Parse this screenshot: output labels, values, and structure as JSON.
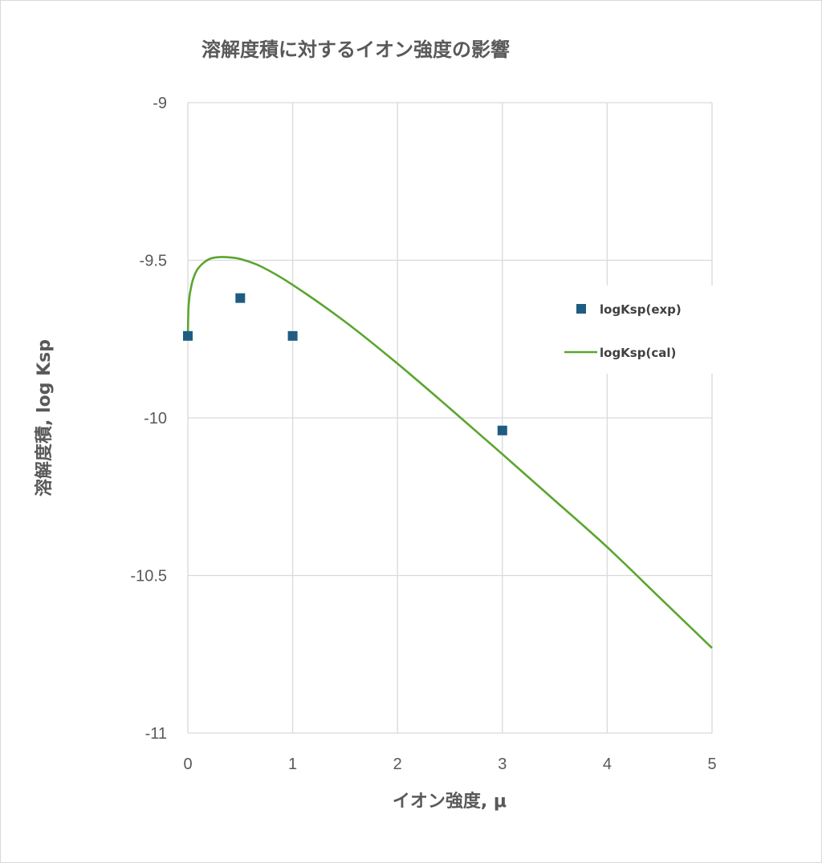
{
  "chart_data": {
    "type": "scatter",
    "title": "溶解度積に対するイオン強度の影響",
    "xlabel": "イオン強度, μ",
    "ylabel": "溶解度積, log Ksp",
    "xlim": [
      0,
      5
    ],
    "ylim": [
      -11,
      -9
    ],
    "x_ticks": [
      "0",
      "1",
      "2",
      "3",
      "4",
      "5"
    ],
    "y_ticks": [
      "-9",
      "-9.5",
      "-10",
      "-10.5",
      "-11"
    ],
    "grid": true,
    "legend_position": "right",
    "series": [
      {
        "name": "logKsp(exp)",
        "kind": "scatter",
        "color": "#1f5c80",
        "x": [
          0,
          0.5,
          1,
          3
        ],
        "y": [
          -9.74,
          -9.62,
          -9.74,
          -10.04
        ]
      },
      {
        "name": "logKsp(cal)",
        "kind": "line",
        "color": "#5ba52f",
        "x": [
          0,
          0.005,
          0.01,
          0.02,
          0.05,
          0.1,
          0.2,
          0.3,
          0.4,
          0.5,
          0.7,
          1.0,
          1.5,
          2.0,
          2.5,
          3.0,
          3.5,
          4.0,
          4.5,
          5.0
        ],
        "y": [
          -9.74,
          -9.66,
          -9.635,
          -9.605,
          -9.56,
          -9.525,
          -9.497,
          -9.49,
          -9.491,
          -9.496,
          -9.52,
          -9.578,
          -9.695,
          -9.828,
          -9.97,
          -10.115,
          -10.262,
          -10.41,
          -10.57,
          -10.73
        ]
      }
    ]
  }
}
